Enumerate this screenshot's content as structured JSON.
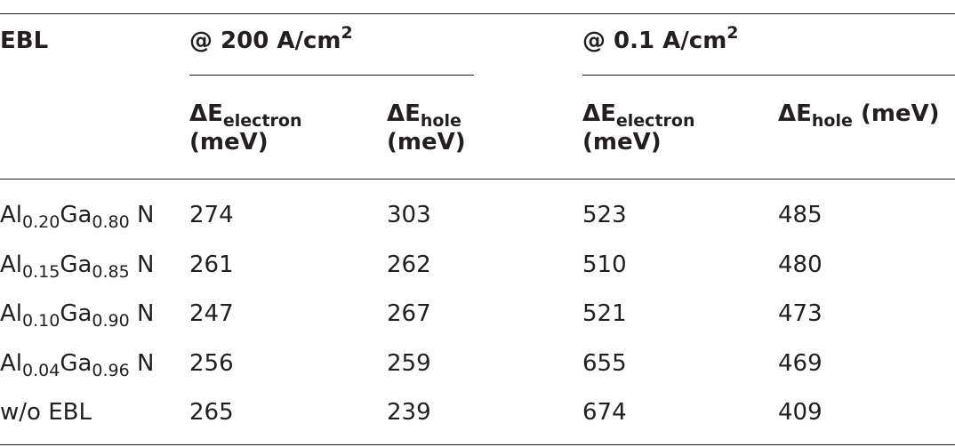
{
  "header": {
    "ebl": "EBL",
    "groups": [
      {
        "label": "@ 200 A/cm",
        "sup": "2",
        "columns": [
          {
            "symbol": "ΔE",
            "sub": "electron",
            "unit": "(meV)"
          },
          {
            "symbol": "ΔE",
            "sub": "hole",
            "unit": "(meV)"
          }
        ]
      },
      {
        "label": "@ 0.1 A/cm",
        "sup": "2",
        "columns": [
          {
            "symbol": "ΔE",
            "sub": "electron",
            "unit": "(meV)"
          },
          {
            "symbol": "ΔE",
            "sub": "hole",
            "unit": "(meV)"
          }
        ]
      }
    ]
  },
  "rows": [
    {
      "ebl": {
        "element1": "Al",
        "sub1": "0.20",
        "element2": "Ga",
        "sub2": "0.80",
        "element3": " N"
      },
      "values": [
        274,
        303,
        523,
        485
      ]
    },
    {
      "ebl": {
        "element1": "Al",
        "sub1": "0.15",
        "element2": "Ga",
        "sub2": "0.85",
        "element3": " N"
      },
      "values": [
        261,
        262,
        510,
        480
      ]
    },
    {
      "ebl": {
        "element1": "Al",
        "sub1": "0.10",
        "element2": "Ga",
        "sub2": "0.90",
        "element3": " N"
      },
      "values": [
        247,
        267,
        521,
        473
      ]
    },
    {
      "ebl": {
        "element1": "Al",
        "sub1": "0.04",
        "element2": "Ga",
        "sub2": "0.96",
        "element3": " N"
      },
      "values": [
        256,
        259,
        655,
        469
      ]
    },
    {
      "ebl": "w/o EBL",
      "values": [
        265,
        239,
        674,
        409
      ]
    }
  ]
}
